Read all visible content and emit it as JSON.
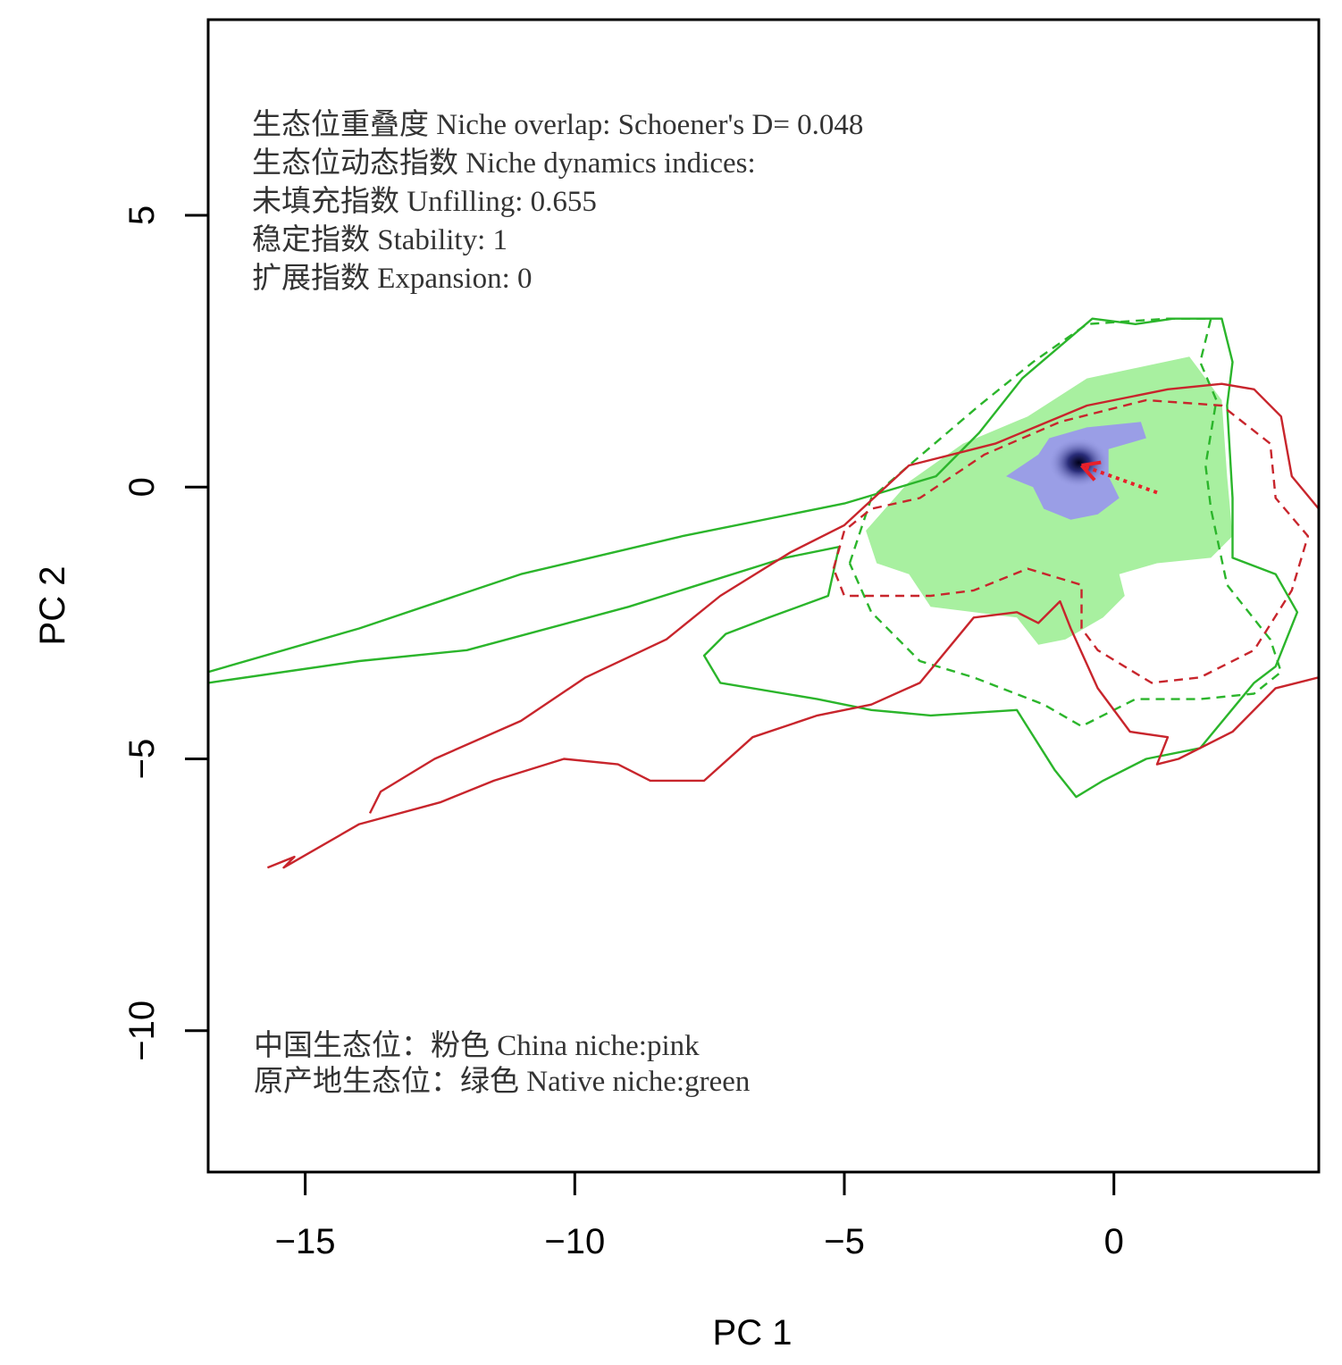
{
  "chart_data": {
    "type": "contour",
    "xlabel": "PC 1",
    "ylabel": "PC 2",
    "xlim": [
      -16.8,
      3.8
    ],
    "ylim": [
      -12.6,
      8.6
    ],
    "x_ticks": [
      -15,
      -10,
      -5,
      0
    ],
    "y_ticks": [
      5,
      0,
      -5,
      -10
    ],
    "x_tick_labels": [
      "−15",
      "−10",
      "−5",
      "0"
    ],
    "y_tick_labels": [
      "5",
      "0",
      "−5",
      "−10"
    ],
    "grid": false,
    "annotations_top": [
      "生态位重叠度  Niche overlap: Schoener's D= 0.048",
      "生态位动态指数  Niche dynamics indices:",
      "未填充指数  Unfilling: 0.655",
      "稳定指数  Stability: 1",
      "扩展指数  Expansion: 0"
    ],
    "annotations_bottom": [
      "中国生态位：粉色  China niche:pink",
      "原产地生态位：绿色  Native niche:green"
    ],
    "colors": {
      "native": "#2bb52b",
      "china": "#c8252c",
      "native_fill": "#a8f0a0",
      "overlap_fill": "#9a9ee6",
      "density_core": "#0a0a30",
      "shift_arrow": "#e8202a"
    },
    "series": [
      {
        "name": "Native niche:green",
        "style": "solid",
        "color": "#2bb52b",
        "points": [
          [
            -16.8,
            -3.4
          ],
          [
            -14,
            -2.6
          ],
          [
            -11,
            -1.6
          ],
          [
            -8,
            -0.9
          ],
          [
            -5,
            -0.3
          ],
          [
            -3.3,
            0.2
          ],
          [
            -2.5,
            1.0
          ],
          [
            -1.7,
            2.0
          ],
          [
            -0.4,
            3.1
          ],
          [
            0.4,
            3.0
          ],
          [
            1.1,
            3.1
          ],
          [
            2.0,
            3.1
          ],
          [
            2.2,
            2.3
          ],
          [
            2.1,
            1.5
          ],
          [
            2.2,
            -0.2
          ],
          [
            2.2,
            -1.3
          ],
          [
            3.0,
            -1.6
          ],
          [
            3.4,
            -2.3
          ],
          [
            3.0,
            -3.3
          ],
          [
            2.6,
            -3.6
          ],
          [
            1.6,
            -4.8
          ],
          [
            0.6,
            -5.0
          ],
          [
            -0.2,
            -5.4
          ],
          [
            -0.7,
            -5.7
          ],
          [
            -1.1,
            -5.2
          ],
          [
            -1.8,
            -4.1
          ],
          [
            -3.4,
            -4.2
          ],
          [
            -4.5,
            -4.1
          ],
          [
            -5.5,
            -3.9
          ],
          [
            -7.3,
            -3.6
          ],
          [
            -7.6,
            -3.1
          ],
          [
            -7.2,
            -2.7
          ],
          [
            -6.4,
            -2.4
          ],
          [
            -5.3,
            -2.0
          ],
          [
            -5.1,
            -1.1
          ],
          [
            -6.1,
            -1.3
          ],
          [
            -9.0,
            -2.2
          ],
          [
            -12.0,
            -3.0
          ],
          [
            -14.0,
            -3.2
          ],
          [
            -16.8,
            -3.6
          ]
        ]
      },
      {
        "name": "Native niche:green",
        "style": "dashed",
        "color": "#2bb52b",
        "points": [
          [
            -4.9,
            -1.4
          ],
          [
            -4.5,
            -0.2
          ],
          [
            -3.8,
            0.4
          ],
          [
            -2.5,
            1.5
          ],
          [
            -1.5,
            2.3
          ],
          [
            -0.5,
            3.0
          ],
          [
            1.0,
            3.1
          ],
          [
            1.8,
            3.1
          ],
          [
            1.6,
            2.3
          ],
          [
            1.9,
            1.6
          ],
          [
            1.7,
            0.4
          ],
          [
            1.8,
            -0.4
          ],
          [
            2.1,
            -1.8
          ],
          [
            2.9,
            -2.8
          ],
          [
            3.1,
            -3.4
          ],
          [
            2.6,
            -3.8
          ],
          [
            1.6,
            -3.9
          ],
          [
            0.4,
            -3.9
          ],
          [
            -0.6,
            -4.4
          ],
          [
            -1.3,
            -4.0
          ],
          [
            -2.6,
            -3.5
          ],
          [
            -3.6,
            -3.2
          ],
          [
            -4.5,
            -2.3
          ],
          [
            -4.9,
            -1.4
          ]
        ]
      },
      {
        "name": "China niche:pink",
        "style": "solid",
        "color": "#c8252c",
        "points": [
          [
            -15.7,
            -7.0
          ],
          [
            -15.2,
            -6.8
          ],
          [
            -15.4,
            -7.0
          ],
          [
            -14.0,
            -6.2
          ],
          [
            -12.5,
            -5.8
          ],
          [
            -11.5,
            -5.4
          ],
          [
            -10.2,
            -5.0
          ],
          [
            -9.2,
            -5.1
          ],
          [
            -8.6,
            -5.4
          ],
          [
            -7.6,
            -5.4
          ],
          [
            -6.7,
            -4.6
          ],
          [
            -5.5,
            -4.2
          ],
          [
            -4.5,
            -4.0
          ],
          [
            -3.6,
            -3.6
          ],
          [
            -2.6,
            -2.4
          ],
          [
            -1.8,
            -2.3
          ],
          [
            -1.4,
            -2.5
          ],
          [
            -1.0,
            -2.1
          ],
          [
            -0.8,
            -2.6
          ],
          [
            -0.3,
            -3.7
          ],
          [
            0.3,
            -4.5
          ],
          [
            1.0,
            -4.6
          ],
          [
            0.8,
            -5.1
          ],
          [
            1.2,
            -5.0
          ],
          [
            2.2,
            -4.5
          ],
          [
            3.0,
            -3.7
          ],
          [
            3.8,
            -3.5
          ],
          [
            3.8,
            -0.4
          ],
          [
            3.3,
            0.2
          ],
          [
            3.1,
            1.3
          ],
          [
            2.6,
            1.8
          ],
          [
            2.0,
            1.9
          ],
          [
            1.0,
            1.8
          ],
          [
            -0.5,
            1.5
          ],
          [
            -2.2,
            0.8
          ],
          [
            -3.8,
            0.4
          ],
          [
            -5.0,
            -0.7
          ],
          [
            -6.0,
            -1.2
          ],
          [
            -7.3,
            -2.0
          ],
          [
            -8.3,
            -2.8
          ],
          [
            -9.8,
            -3.5
          ],
          [
            -11.0,
            -4.3
          ],
          [
            -12.6,
            -5.0
          ],
          [
            -13.6,
            -5.6
          ],
          [
            -13.8,
            -6.0
          ]
        ]
      },
      {
        "name": "China niche:pink",
        "style": "dashed",
        "color": "#c8252c",
        "points": [
          [
            -5.2,
            -1.5
          ],
          [
            -5.0,
            -0.8
          ],
          [
            -4.5,
            -0.4
          ],
          [
            -3.6,
            -0.2
          ],
          [
            -2.4,
            0.6
          ],
          [
            -1.0,
            1.2
          ],
          [
            0.6,
            1.6
          ],
          [
            2.0,
            1.5
          ],
          [
            2.9,
            0.8
          ],
          [
            3.0,
            -0.2
          ],
          [
            3.6,
            -0.9
          ],
          [
            3.3,
            -1.9
          ],
          [
            2.6,
            -3.0
          ],
          [
            1.6,
            -3.5
          ],
          [
            0.7,
            -3.6
          ],
          [
            -0.3,
            -3.0
          ],
          [
            -0.6,
            -2.6
          ],
          [
            -0.6,
            -1.8
          ],
          [
            -1.6,
            -1.5
          ],
          [
            -2.6,
            -1.9
          ],
          [
            -3.4,
            -2.0
          ],
          [
            -4.3,
            -2.0
          ],
          [
            -5.0,
            -2.0
          ],
          [
            -5.2,
            -1.5
          ]
        ]
      }
    ],
    "shift_arrow": {
      "from": [
        0.8,
        -0.1
      ],
      "to": [
        -0.6,
        0.4
      ]
    }
  }
}
